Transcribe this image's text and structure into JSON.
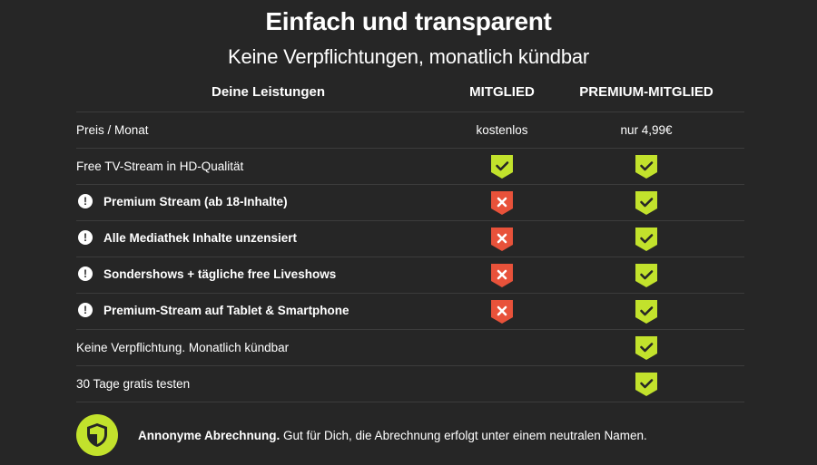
{
  "header": {
    "title": "Einfach und transparent",
    "subtitle": "Keine Verpflichtungen, monatlich kündbar"
  },
  "table": {
    "columns": {
      "features": "Deine Leistungen",
      "member": "MITGLIED",
      "premium": "PREMIUM-MITGLIED"
    },
    "rows": [
      {
        "label": "Preis / Monat",
        "emphasis": false,
        "member_text": "kostenlos",
        "premium_text": "nur 4,99€"
      },
      {
        "label": "Free TV-Stream in HD-Qualität",
        "emphasis": false,
        "member": "check",
        "premium": "check"
      },
      {
        "label": "Premium Stream (ab 18-Inhalte)",
        "emphasis": true,
        "member": "cross",
        "premium": "check"
      },
      {
        "label": "Alle Mediathek Inhalte unzensiert",
        "emphasis": true,
        "member": "cross",
        "premium": "check"
      },
      {
        "label": "Sondershows + tägliche free Liveshows",
        "emphasis": true,
        "member": "cross",
        "premium": "check"
      },
      {
        "label": "Premium-Stream auf Tablet & Smartphone",
        "emphasis": true,
        "member": "cross",
        "premium": "check"
      },
      {
        "label": "Keine Verpflichtung. Monatlich kündbar",
        "emphasis": false,
        "member": "none",
        "premium": "check"
      },
      {
        "label": "30 Tage gratis testen",
        "emphasis": false,
        "member": "none",
        "premium": "check"
      }
    ],
    "warn_glyph": "!"
  },
  "footer": {
    "icon": "shield-icon",
    "bold_text": "Annonyme Abrechnung.",
    "text": " Gut für Dich, die Abrechnung erfolgt unter einem neutralen Namen."
  },
  "colors": {
    "background": "#262626",
    "check": "#c2e22c",
    "cross": "#e8523a",
    "divider": "#3c3c3c"
  }
}
